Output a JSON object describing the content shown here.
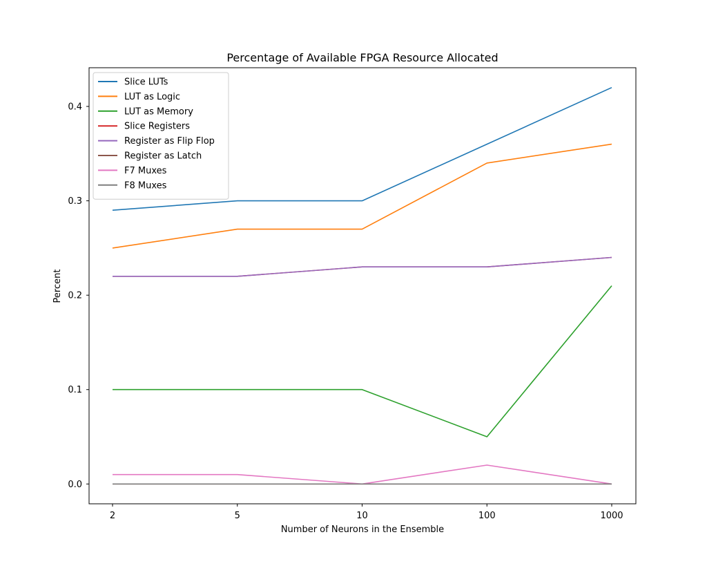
{
  "chart_data": {
    "type": "line",
    "title": "Percentage of Available FPGA Resource Allocated",
    "xlabel": "Number of Neurons in the Ensemble",
    "ylabel": "Percent",
    "categories": [
      "2",
      "5",
      "10",
      "100",
      "1000"
    ],
    "ylim": [
      -0.021,
      0.441
    ],
    "yticks": [
      0.0,
      0.1,
      0.2,
      0.3,
      0.4
    ],
    "ytick_labels": [
      "0.0",
      "0.1",
      "0.2",
      "0.3",
      "0.4"
    ],
    "grid": false,
    "legend_position": "top-left",
    "series": [
      {
        "name": "Slice LUTs",
        "color": "#1f77b4",
        "values": [
          0.29,
          0.3,
          0.3,
          0.36,
          0.42
        ]
      },
      {
        "name": "LUT as Logic",
        "color": "#ff7f0e",
        "values": [
          0.25,
          0.27,
          0.27,
          0.34,
          0.36
        ]
      },
      {
        "name": "LUT as Memory",
        "color": "#2ca02c",
        "values": [
          0.1,
          0.1,
          0.1,
          0.05,
          0.21
        ]
      },
      {
        "name": "Slice Registers",
        "color": "#d62728",
        "values": [
          0.22,
          0.22,
          0.23,
          0.23,
          0.24
        ]
      },
      {
        "name": "Register as Flip Flop",
        "color": "#9467bd",
        "values": [
          0.22,
          0.22,
          0.23,
          0.23,
          0.24
        ]
      },
      {
        "name": "Register as Latch",
        "color": "#8c564b",
        "values": [
          0.0,
          0.0,
          0.0,
          0.0,
          0.0
        ]
      },
      {
        "name": "F7 Muxes",
        "color": "#e377c2",
        "values": [
          0.01,
          0.01,
          0.0,
          0.02,
          0.0
        ]
      },
      {
        "name": "F8 Muxes",
        "color": "#7f7f7f",
        "values": [
          0.0,
          0.0,
          0.0,
          0.0,
          0.0
        ]
      }
    ]
  }
}
